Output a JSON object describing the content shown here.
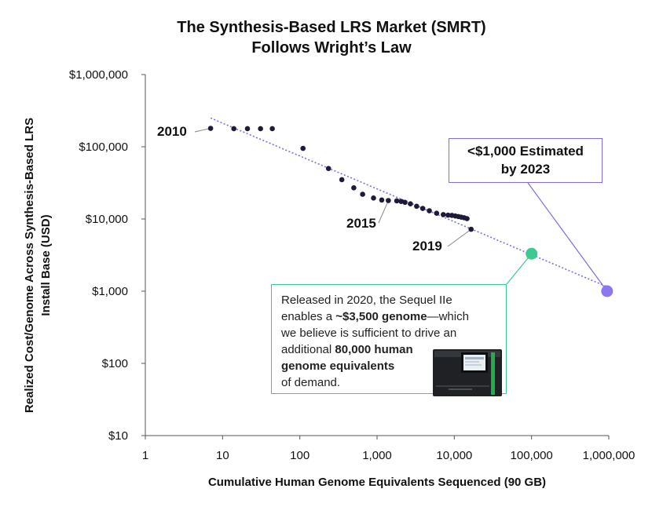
{
  "title": {
    "line1": "The Synthesis-Based LRS Market (SMRT)",
    "line2": "Follows Wright’s Law"
  },
  "ylabel": {
    "line1": "Realized Cost/Genome Across Synthesis-Based LRS",
    "line2": "Install Base (USD)"
  },
  "xlabel": "Cumulative Human Genome Equivalents Sequenced (90 GB)",
  "colors": {
    "points": "#1e1b3a",
    "trend": "#7d6ee6",
    "highlight_green": "#3ec990",
    "highlight_purple": "#8b78f0"
  },
  "chart_data": {
    "type": "scatter",
    "x_scale": "log",
    "y_scale": "log",
    "xlim": [
      1,
      1000000
    ],
    "ylim": [
      10,
      1000000
    ],
    "x_ticks": [
      1,
      10,
      100,
      1000,
      10000,
      100000,
      1000000
    ],
    "x_tick_labels": [
      "1",
      "10",
      "100",
      "1,000",
      "10,000",
      "100,000",
      "1,000,000"
    ],
    "y_ticks": [
      10,
      100,
      1000,
      10000,
      100000,
      1000000
    ],
    "y_tick_labels": [
      "$10",
      "$100",
      "$1,000",
      "$10,000",
      "$100,000",
      "$1,000,000"
    ],
    "grid": false,
    "points": [
      {
        "x": 7,
        "y": 180000
      },
      {
        "x": 14,
        "y": 178000
      },
      {
        "x": 21,
        "y": 178000
      },
      {
        "x": 31,
        "y": 178000
      },
      {
        "x": 44,
        "y": 178000
      },
      {
        "x": 110,
        "y": 95000
      },
      {
        "x": 235,
        "y": 50000
      },
      {
        "x": 350,
        "y": 35000
      },
      {
        "x": 500,
        "y": 27000
      },
      {
        "x": 650,
        "y": 22000
      },
      {
        "x": 900,
        "y": 19500
      },
      {
        "x": 1150,
        "y": 18300
      },
      {
        "x": 1400,
        "y": 18000
      },
      {
        "x": 1800,
        "y": 17800
      },
      {
        "x": 2050,
        "y": 17500
      },
      {
        "x": 2300,
        "y": 17000
      },
      {
        "x": 2700,
        "y": 16200
      },
      {
        "x": 3250,
        "y": 15000
      },
      {
        "x": 3900,
        "y": 14000
      },
      {
        "x": 4750,
        "y": 13000
      },
      {
        "x": 5900,
        "y": 12000
      },
      {
        "x": 7200,
        "y": 11500
      },
      {
        "x": 8300,
        "y": 11300
      },
      {
        "x": 9300,
        "y": 11200
      },
      {
        "x": 10300,
        "y": 11000
      },
      {
        "x": 11300,
        "y": 10800
      },
      {
        "x": 12300,
        "y": 10600
      },
      {
        "x": 13400,
        "y": 10400
      },
      {
        "x": 14600,
        "y": 10100
      },
      {
        "x": 16500,
        "y": 7200
      }
    ],
    "trend": {
      "x": [
        7,
        950000
      ],
      "y": [
        250000,
        1150
      ]
    },
    "highlights": [
      {
        "x": 100000,
        "y": 3300,
        "color": "#3ec990"
      },
      {
        "x": 950000,
        "y": 1000,
        "color": "#8b78f0"
      }
    ],
    "annotations": {
      "year_2010": "2010",
      "year_2015": "2015",
      "year_2019": "2019",
      "estimate_line1": "<$1,000 Estimated",
      "estimate_line2": "by 2023"
    }
  },
  "note": {
    "t1": "Released in 2020, the Sequel IIe",
    "t2": "enables a ",
    "t2_bold": "~$3,500 genome",
    "t2_rest": "—which",
    "t3": "we believe is sufficient to drive an",
    "t4": "additional ",
    "t4_bold": "80,000 human",
    "t5_bold": "genome equivalents",
    "t6": "of demand."
  }
}
